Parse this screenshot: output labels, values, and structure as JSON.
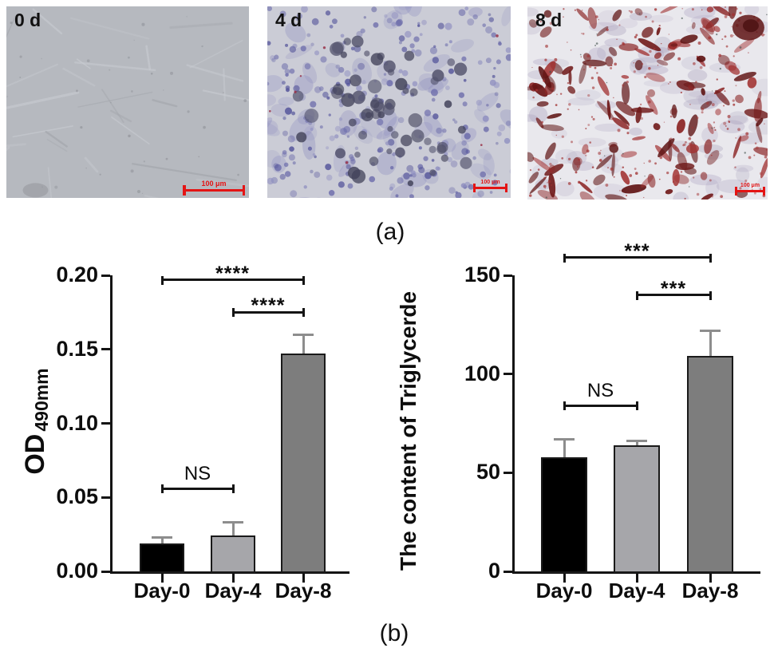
{
  "figure": {
    "panel_a_label": "(a)",
    "panel_b_label": "(b)",
    "background": "#ffffff",
    "scale_bar_color": "#e41414"
  },
  "micrographs": [
    {
      "label": "0 d",
      "scale_bar_text": "100 μm",
      "appearance": "undifferentiated translucent fibroblast-like cells, unstained gray phase-contrast field",
      "palette": [
        "#b6b9bf",
        "#c9ccd2",
        "#a2a5ab",
        "#8f9298"
      ]
    },
    {
      "label": "4 d",
      "scale_bar_text": "100 μm",
      "appearance": "dense purple-blue stained cell clusters on pale lavender background",
      "palette": [
        "#cbccd6",
        "#6b6baa",
        "#50506a",
        "#8f8fc0",
        "#42425a"
      ]
    },
    {
      "label": "8 d",
      "scale_bar_text": "100 μm",
      "appearance": "red lipid-droplet (oil red O) stained adipocytes with faint purple cells on near-white background",
      "palette": [
        "#e9e8ed",
        "#8c2626",
        "#5f1414",
        "#a9a0bd",
        "#a23232"
      ]
    }
  ],
  "chart_data": [
    {
      "type": "bar",
      "title": "",
      "ylabel_main": "OD",
      "ylabel_sub": "490mm",
      "categories": [
        "Day-0",
        "Day-4",
        "Day-8"
      ],
      "values": [
        0.019,
        0.024,
        0.147
      ],
      "error_caps": [
        0.023,
        0.033,
        0.16
      ],
      "bar_colors": [
        "#000000",
        "#a6a6aa",
        "#7d7d7d"
      ],
      "ylim": [
        0,
        0.2
      ],
      "yticks": [
        {
          "v": 0.0,
          "label": "0.00"
        },
        {
          "v": 0.05,
          "label": "0.05"
        },
        {
          "v": 0.1,
          "label": "0.10"
        },
        {
          "v": 0.15,
          "label": "0.15"
        },
        {
          "v": 0.2,
          "label": "0.20"
        }
      ],
      "grid": false,
      "legend": null,
      "significance": [
        {
          "from": 0,
          "to": 1,
          "label": "NS",
          "height": 0.056
        },
        {
          "from": 1,
          "to": 2,
          "label": "****",
          "height": 0.175
        },
        {
          "from": 0,
          "to": 2,
          "label": "****",
          "height": 0.197
        }
      ]
    },
    {
      "type": "bar",
      "title": "",
      "ylabel": "The content of Triglycerde",
      "categories": [
        "Day-0",
        "Day-4",
        "Day-8"
      ],
      "values": [
        58,
        64,
        109
      ],
      "error_caps": [
        67,
        66,
        122
      ],
      "bar_colors": [
        "#000000",
        "#a6a6aa",
        "#7d7d7d"
      ],
      "ylim": [
        0,
        150
      ],
      "yticks": [
        {
          "v": 0,
          "label": "0"
        },
        {
          "v": 50,
          "label": "50"
        },
        {
          "v": 100,
          "label": "100"
        },
        {
          "v": 150,
          "label": "150"
        }
      ],
      "grid": false,
      "legend": null,
      "significance": [
        {
          "from": 0,
          "to": 1,
          "label": "NS",
          "height": 84
        },
        {
          "from": 1,
          "to": 2,
          "label": "***",
          "height": 140
        },
        {
          "from": 0,
          "to": 2,
          "label": "***",
          "height": 159
        }
      ]
    }
  ]
}
